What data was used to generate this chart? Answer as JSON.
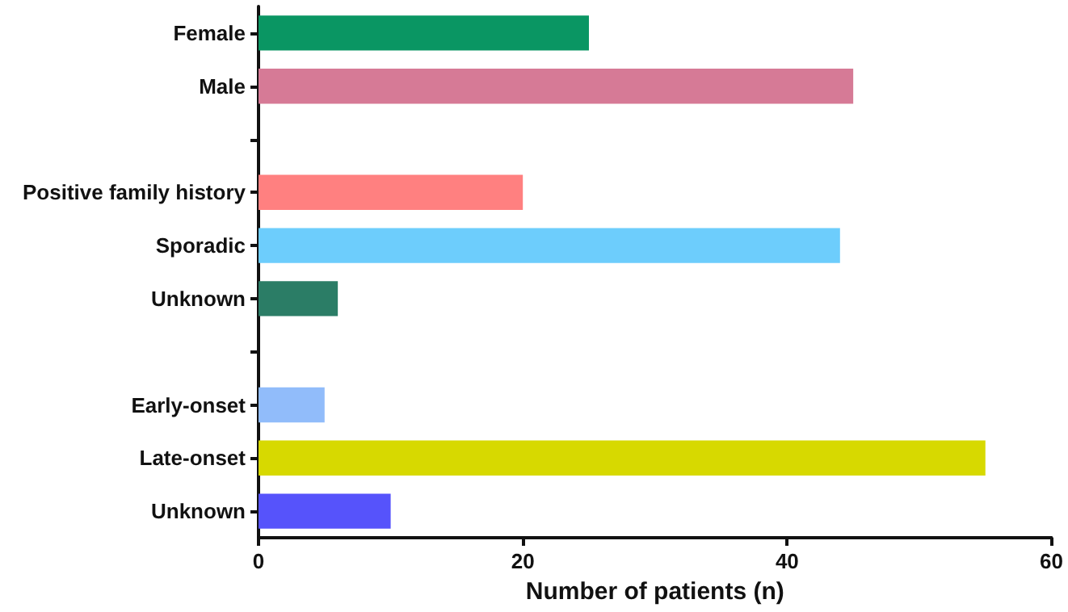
{
  "chart_data": {
    "type": "bar",
    "orientation": "horizontal",
    "xlabel": "Number of patients (n)",
    "categories": [
      "Female",
      "Male",
      null,
      "Positive family history",
      "Sporadic",
      "Unknown",
      null,
      "Early-onset",
      "Late-onset",
      "Unknown"
    ],
    "values": [
      25,
      45,
      null,
      20,
      44,
      6,
      null,
      5,
      55,
      10
    ],
    "colors": [
      "#0a9663",
      "#d67a96",
      null,
      "#ff8080",
      "#6dcdfc",
      "#2b7d66",
      null,
      "#91bcfa",
      "#d7d900",
      "#5653fb"
    ],
    "xlim": [
      0,
      60
    ],
    "xticks": [
      0,
      20,
      40,
      60
    ],
    "grid": false
  }
}
